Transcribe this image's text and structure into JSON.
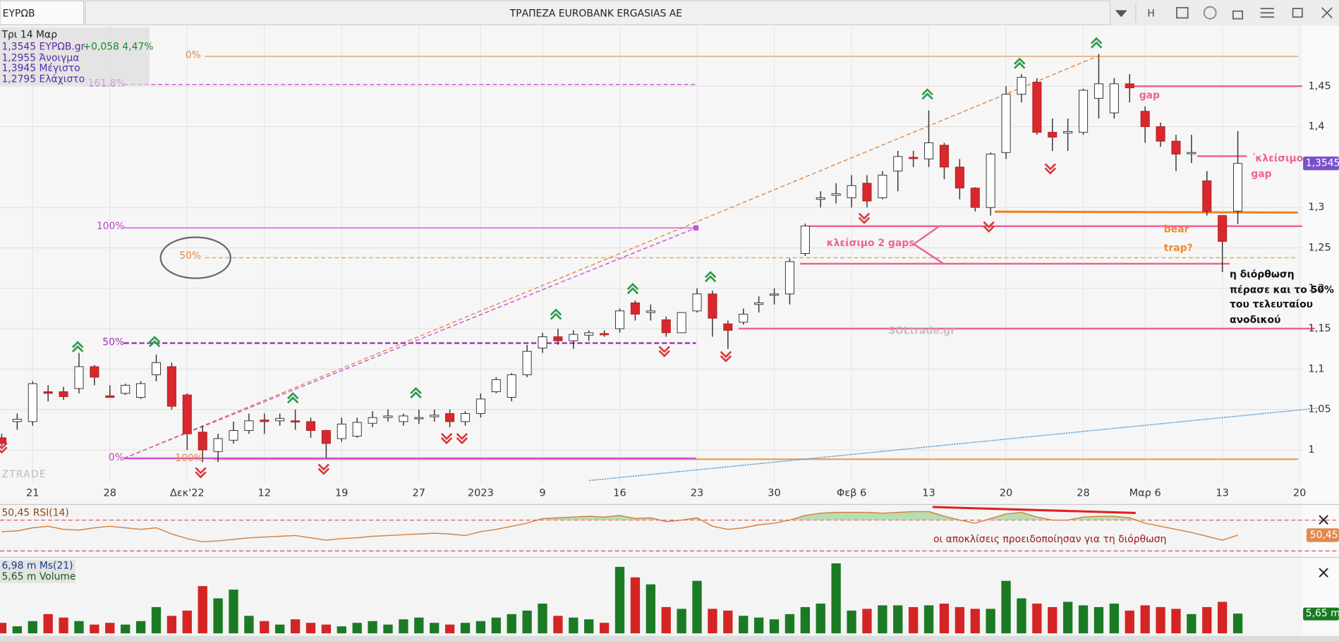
{
  "header": {
    "symbol": "ΕΥΡΩΒ",
    "title": "ΤΡΑΠΕΖΑ EUROBANK ERGASIAS AE",
    "button": "H"
  },
  "info": {
    "date": "Τρι 14 Μαρ",
    "last": "1,3545 ΕΥΡΩΒ.gr",
    "change": "+0,058 4,47%",
    "open": "1,2955 Άνοιγμα",
    "high": "1,3945 Μέγιστο",
    "low": "1,2795 Ελάχιστο"
  },
  "chart_data": [
    {
      "type": "candlestick",
      "grid": true,
      "up_color": "#ffffff",
      "down_color": "#d8282e",
      "xlim": [
        -0.11,
        84.17
      ],
      "ylim": [
        0.96,
        1.525
      ],
      "xticks": [
        {
          "value": 2,
          "label": "21"
        },
        {
          "value": 7,
          "label": "28"
        },
        {
          "value": 12,
          "label": "Δεκ'22"
        },
        {
          "value": 17,
          "label": "12"
        },
        {
          "value": 22,
          "label": "19"
        },
        {
          "value": 27,
          "label": "27"
        },
        {
          "value": 31,
          "label": "2023"
        },
        {
          "value": 35,
          "label": "9"
        },
        {
          "value": 40,
          "label": "16"
        },
        {
          "value": 45,
          "label": "23"
        },
        {
          "value": 50,
          "label": "30"
        },
        {
          "value": 55,
          "label": "Φεβ 6"
        },
        {
          "value": 60,
          "label": "13"
        },
        {
          "value": 65,
          "label": "20"
        },
        {
          "value": 70,
          "label": "28"
        },
        {
          "value": 74,
          "label": "Μαρ 6"
        },
        {
          "value": 79,
          "label": "13"
        },
        {
          "value": 84,
          "label": "20"
        }
      ],
      "yticks": [
        1,
        {
          "value": 1.05,
          "label": "1,05"
        },
        {
          "value": 1.1,
          "label": "1,1"
        },
        {
          "value": 1.15,
          "label": "1,15"
        },
        {
          "value": 1.2,
          "label": "1,2"
        },
        {
          "value": 1.25,
          "label": "1,25"
        },
        {
          "value": 1.3,
          "label": "1,3"
        },
        {
          "value": 1.4,
          "label": "1,4"
        },
        {
          "value": 1.45,
          "label": "1,45"
        }
      ],
      "last_value_label": "1,3545",
      "open": [
        1.015,
        1.035,
        1.035,
        1.072,
        1.072,
        1.076,
        1.103,
        1.067,
        1.07,
        1.065,
        1.093,
        1.103,
        1.068,
        1.022,
        0.998,
        1.012,
        1.024,
        1.037,
        1.036,
        1.036,
        1.035,
        1.024,
        1.014,
        1.017,
        1.033,
        1.04,
        1.035,
        1.04,
        1.041,
        1.045,
        1.035,
        1.045,
        1.072,
        1.065,
        1.093,
        1.126,
        1.14,
        1.135,
        1.142,
        1.144,
        1.15,
        1.182,
        1.17,
        1.161,
        1.145,
        1.172,
        1.193,
        1.156,
        1.158,
        1.18,
        1.192,
        1.193,
        1.243,
        1.31,
        1.315,
        1.312,
        1.33,
        1.312,
        1.345,
        1.362,
        1.36,
        1.377,
        1.35,
        1.324,
        1.3,
        1.368,
        1.44,
        1.455,
        1.393,
        1.392,
        1.393,
        1.435,
        1.417,
        1.453,
        1.419,
        1.4,
        1.382,
        1.367,
        1.333,
        1.29,
        1.2955
      ],
      "high": [
        1.02,
        1.045,
        1.085,
        1.08,
        1.078,
        1.12,
        1.105,
        1.08,
        1.082,
        1.085,
        1.118,
        1.108,
        1.07,
        1.03,
        1.02,
        1.035,
        1.045,
        1.045,
        1.045,
        1.05,
        1.04,
        1.025,
        1.04,
        1.04,
        1.048,
        1.05,
        1.045,
        1.05,
        1.05,
        1.05,
        1.048,
        1.07,
        1.09,
        1.095,
        1.13,
        1.145,
        1.15,
        1.148,
        1.148,
        1.148,
        1.175,
        1.185,
        1.18,
        1.165,
        1.17,
        1.2,
        1.197,
        1.16,
        1.175,
        1.19,
        1.2,
        1.237,
        1.28,
        1.32,
        1.33,
        1.34,
        1.34,
        1.345,
        1.37,
        1.37,
        1.42,
        1.38,
        1.36,
        1.325,
        1.368,
        1.45,
        1.465,
        1.46,
        1.41,
        1.41,
        1.447,
        1.49,
        1.46,
        1.465,
        1.425,
        1.405,
        1.39,
        1.39,
        1.345,
        1.29,
        1.3945
      ],
      "low": [
        1.005,
        1.025,
        1.03,
        1.06,
        1.062,
        1.07,
        1.08,
        1.065,
        1.068,
        1.063,
        1.085,
        1.05,
        1.0,
        0.985,
        0.985,
        1.008,
        1.02,
        1.02,
        1.03,
        1.025,
        1.015,
        0.99,
        1.01,
        1.015,
        1.028,
        1.035,
        1.03,
        1.032,
        1.035,
        1.028,
        1.03,
        1.04,
        1.07,
        1.06,
        1.09,
        1.12,
        1.13,
        1.125,
        1.135,
        1.14,
        1.145,
        1.16,
        1.16,
        1.14,
        1.145,
        1.17,
        1.14,
        1.125,
        1.155,
        1.17,
        1.18,
        1.18,
        1.24,
        1.3,
        1.305,
        1.3,
        1.3,
        1.31,
        1.32,
        1.35,
        1.35,
        1.335,
        1.31,
        1.295,
        1.29,
        1.36,
        1.43,
        1.39,
        1.37,
        1.37,
        1.39,
        1.41,
        1.41,
        1.43,
        1.38,
        1.375,
        1.345,
        1.355,
        1.29,
        1.22,
        1.2795
      ],
      "close": [
        1.008,
        1.038,
        1.082,
        1.07,
        1.066,
        1.103,
        1.09,
        1.065,
        1.08,
        1.082,
        1.108,
        1.054,
        1.02,
        1.0,
        1.014,
        1.024,
        1.036,
        1.035,
        1.039,
        1.035,
        1.024,
        1.008,
        1.032,
        1.034,
        1.04,
        1.042,
        1.042,
        1.04,
        1.043,
        1.035,
        1.045,
        1.063,
        1.087,
        1.093,
        1.122,
        1.14,
        1.135,
        1.143,
        1.145,
        1.143,
        1.172,
        1.168,
        1.172,
        1.145,
        1.17,
        1.193,
        1.163,
        1.148,
        1.168,
        1.182,
        1.193,
        1.233,
        1.277,
        1.312,
        1.317,
        1.327,
        1.308,
        1.34,
        1.363,
        1.361,
        1.38,
        1.35,
        1.324,
        1.3,
        1.366,
        1.44,
        1.461,
        1.393,
        1.387,
        1.394,
        1.445,
        1.453,
        1.453,
        1.448,
        1.4,
        1.382,
        1.366,
        1.368,
        1.295,
        1.258,
        1.3545
      ]
    },
    {
      "type": "line",
      "name": "RSI(14)",
      "color": "#d4813f",
      "legend": "50,45 RSI(14)",
      "last_value_label": "50,45",
      "ylim": [
        25,
        87
      ],
      "levels": [
        30,
        70
      ],
      "level_color": "#e04848",
      "overbought_fill": "#a8d8a0",
      "values": [
        55,
        56,
        60,
        62,
        58,
        57,
        60,
        62,
        60,
        58,
        60,
        52,
        46,
        42,
        43,
        45,
        47,
        48,
        49,
        50,
        47,
        44,
        46,
        47,
        49,
        50,
        51,
        52,
        53,
        52,
        50,
        55,
        58,
        62,
        66,
        72,
        73,
        74,
        75,
        74,
        76,
        72,
        73,
        68,
        70,
        73,
        62,
        58,
        60,
        64,
        66,
        70,
        76,
        79,
        80,
        80,
        80,
        79,
        80,
        81,
        81,
        75,
        70,
        66,
        72,
        78,
        80,
        74,
        70,
        70,
        74,
        75,
        75,
        73,
        66,
        62,
        58,
        54,
        49,
        44,
        50.45
      ]
    },
    {
      "type": "bar",
      "name": "Volume",
      "up_color": "#1b7a24",
      "down_color": "#d42424",
      "legend": [
        "6,98 m Ms(21)",
        "5,65 m Volume"
      ],
      "last_value_label": "5,65 m",
      "ylim": [
        0,
        20.5
      ],
      "values": [
        3,
        2,
        3.5,
        5.5,
        4.5,
        3.5,
        2.5,
        3,
        2.5,
        3.5,
        7.5,
        5,
        6.5,
        13.5,
        10,
        12.5,
        5,
        3.5,
        2.5,
        4,
        3,
        2.5,
        2,
        3,
        3.5,
        2.5,
        4,
        4.5,
        3,
        2.5,
        3,
        3.5,
        4.5,
        5.5,
        6.5,
        8.5,
        5,
        4.5,
        4,
        3,
        19,
        16,
        14,
        7.5,
        7,
        15,
        7,
        6.5,
        5,
        4.5,
        4,
        5.5,
        7.5,
        8.5,
        20,
        6.5,
        7,
        8,
        8,
        7.5,
        8,
        8.5,
        7.5,
        7,
        7,
        15,
        10,
        8.5,
        7.5,
        9,
        8,
        7.5,
        8.5,
        6.5,
        8,
        7.5,
        7,
        5.5,
        7.5,
        9,
        5.65
      ]
    }
  ],
  "annotations": {
    "fib_top": "0%",
    "fib_bottom": "100%",
    "fib_mid": "50%",
    "ext": "161.8%",
    "m100": "100%",
    "m50": "50%",
    "m0": "0%",
    "gap": "gap",
    "close_gap_1": "΄κλείσιμο",
    "close_gap_2": "gap",
    "close_2_gaps": "κλείσιμο 2 gaps",
    "bear": "bear",
    "trap": "trap?",
    "note": [
      "η διόρθωση",
      "πέρασε και το 50%",
      "του τελευταίου",
      "ανοδικού"
    ],
    "divergence": "οι αποκλίσεις προειδοποίησαν για τη διόρθωση"
  },
  "watermark": "SOLtrade.gr",
  "footer_logo": "ZTRADE"
}
